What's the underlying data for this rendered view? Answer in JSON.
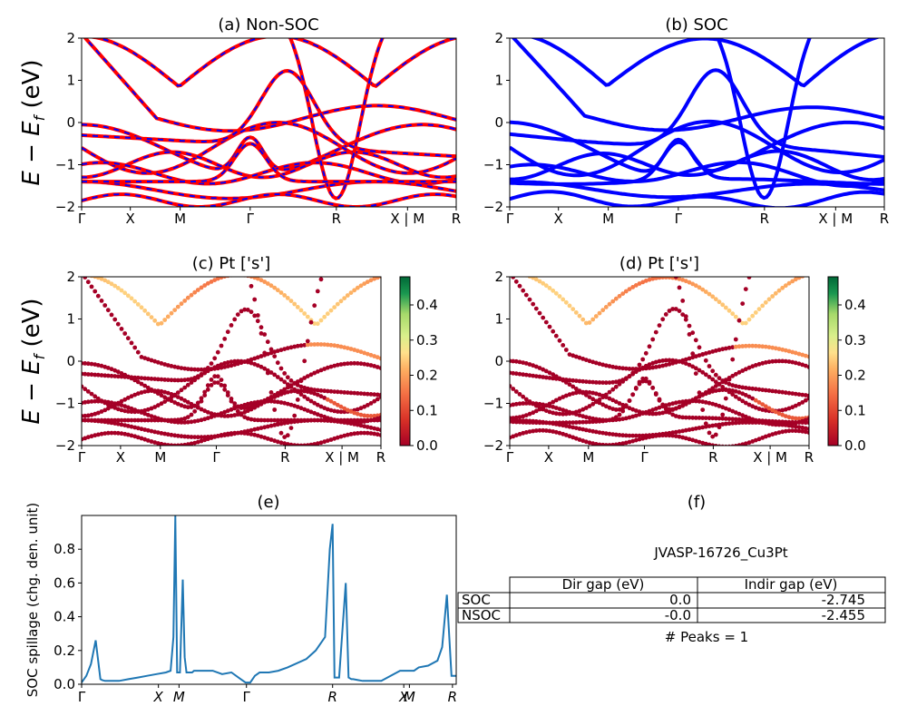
{
  "panels": {
    "a": {
      "title": "(a) Non-SOC",
      "ylabel_main": "E − E",
      "ylabel_sub": "f",
      "ylabel_unit": " (eV)"
    },
    "b": {
      "title": "(b) SOC"
    },
    "c": {
      "title": "(c)  Pt ['s']",
      "ylabel_main": "E − E",
      "ylabel_sub": "f",
      "ylabel_unit": " (eV)"
    },
    "d": {
      "title": "(d) Pt ['s']"
    },
    "e": {
      "title": "(e)",
      "ylabel": "SOC spillage (chg. den. unit)"
    },
    "f": {
      "title": "(f)",
      "material": "JVASP-16726_Cu3Pt",
      "peaks": "# Peaks = 1"
    }
  },
  "kpath_labels": [
    "Γ",
    "X",
    "M",
    "Γ",
    "R",
    "X | M",
    "R"
  ],
  "spillage_kpath_labels": [
    "Γ",
    "X",
    "M",
    "Γ",
    "R",
    "X",
    "M",
    "R"
  ],
  "energy_ticks": [
    "−2",
    "−1",
    "0",
    "1",
    "2"
  ],
  "spillage_ticks": [
    "0.0",
    "0.2",
    "0.4",
    "0.6",
    "0.8"
  ],
  "colorbar_ticks": [
    "0.0",
    "0.1",
    "0.2",
    "0.3",
    "0.4"
  ],
  "colors": {
    "nonsoc": "#ff0000",
    "nonsoc_dash": "#0000ff",
    "soc": "#0000ff",
    "spillage": "#1f77b4"
  },
  "table": {
    "headers": [
      "",
      "Dir gap (eV)",
      "Indir gap (eV)"
    ],
    "rows": [
      {
        "label": "SOC",
        "dir": "0.0",
        "indir": "-2.745"
      },
      {
        "label": "NSOC",
        "dir": "-0.0",
        "indir": "-2.455"
      }
    ]
  },
  "chart_data": [
    {
      "type": "line",
      "title": "(a) Non-SOC",
      "ylabel": "E − E_f (eV)",
      "ylim": [
        -2,
        2
      ],
      "xticklabels": [
        "Γ",
        "X",
        "M",
        "Γ",
        "R",
        "X | M",
        "R"
      ]
    },
    {
      "type": "line",
      "title": "(b) SOC",
      "ylim": [
        -2,
        2
      ],
      "xticklabels": [
        "Γ",
        "X",
        "M",
        "Γ",
        "R",
        "X | M",
        "R"
      ]
    },
    {
      "type": "scatter",
      "title": "(c)  Pt ['s']",
      "ylabel": "E − E_f (eV)",
      "ylim": [
        -2,
        2
      ],
      "colorbar_range": [
        0.0,
        0.48
      ],
      "colormap": "RdYlGn"
    },
    {
      "type": "scatter",
      "title": "(d) Pt ['s']",
      "ylim": [
        -2,
        2
      ],
      "colorbar_range": [
        0.0,
        0.48
      ],
      "colormap": "RdYlGn"
    },
    {
      "type": "line",
      "title": "(e)",
      "ylabel": "SOC spillage (chg. den. unit)",
      "ylim": [
        0,
        1.0
      ],
      "x": [
        0,
        0.05,
        0.1,
        0.15,
        0.2,
        0.22,
        0.25,
        0.3,
        0.4,
        0.5,
        0.6,
        0.7,
        0.8,
        0.9,
        0.95,
        0.98,
        1.0,
        1.02,
        1.05,
        1.08,
        1.1,
        1.12,
        1.15,
        1.18,
        1.2,
        1.3,
        1.4,
        1.5,
        1.6,
        1.7,
        1.75,
        1.8,
        1.85,
        1.9,
        2.0,
        2.1,
        2.2,
        2.4,
        2.5,
        2.6,
        2.65,
        2.68,
        2.7,
        2.72,
        2.75,
        2.82,
        2.85,
        2.88,
        2.9,
        2.95,
        3.0,
        3.2,
        3.4,
        3.5,
        3.55,
        3.6,
        3.7,
        3.8,
        3.85,
        3.9,
        3.95,
        4.0
      ],
      "y": [
        0.01,
        0.05,
        0.12,
        0.26,
        0.03,
        0.025,
        0.02,
        0.02,
        0.02,
        0.03,
        0.04,
        0.05,
        0.06,
        0.07,
        0.08,
        0.28,
        1.0,
        0.07,
        0.07,
        0.62,
        0.16,
        0.07,
        0.07,
        0.07,
        0.08,
        0.08,
        0.08,
        0.06,
        0.07,
        0.03,
        0.01,
        0.01,
        0.05,
        0.07,
        0.07,
        0.08,
        0.1,
        0.15,
        0.2,
        0.28,
        0.8,
        0.95,
        0.04,
        0.04,
        0.04,
        0.6,
        0.04,
        0.03,
        0.03,
        0.025,
        0.02,
        0.02,
        0.08,
        0.08,
        0.08,
        0.1,
        0.11,
        0.14,
        0.22,
        0.53,
        0.05,
        0.05
      ]
    }
  ]
}
